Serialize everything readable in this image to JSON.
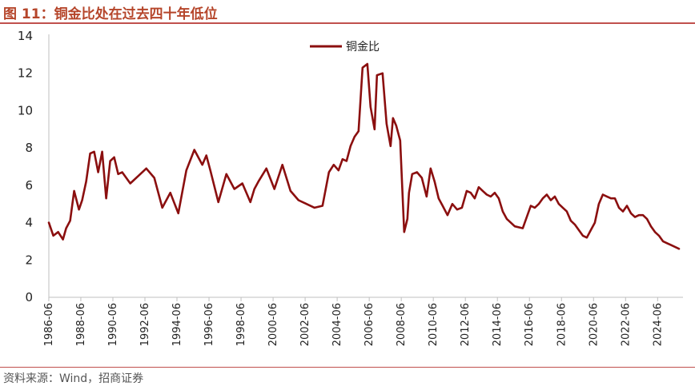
{
  "figure": {
    "title": "图 11：铜金比处在过去四十年低位",
    "source": "资料来源：Wind，招商证券"
  },
  "colors": {
    "series": "#8b0f0f",
    "accent": "#c0504d",
    "axis": "#bfbfbf"
  },
  "chart_data": {
    "type": "line",
    "title": "",
    "xlabel": "",
    "ylabel": "",
    "ylim": [
      0,
      14
    ],
    "yticks": [
      0,
      2,
      4,
      6,
      8,
      10,
      12,
      14
    ],
    "xlim": [
      1986.42,
      2026.0
    ],
    "xticks": [
      "1986-06",
      "1988-06",
      "1990-06",
      "1992-06",
      "1994-06",
      "1996-06",
      "1998-06",
      "2000-06",
      "2002-06",
      "2004-06",
      "2006-06",
      "2008-06",
      "2010-06",
      "2012-06",
      "2014-06",
      "2016-06",
      "2018-06",
      "2020-06",
      "2022-06",
      "2024-06"
    ],
    "legend": "top-center",
    "grid": false,
    "series": [
      {
        "name": "铜金比",
        "x": [
          1986.42,
          1986.7,
          1987.0,
          1987.3,
          1987.5,
          1987.75,
          1988.0,
          1988.3,
          1988.5,
          1988.75,
          1989.0,
          1989.25,
          1989.5,
          1989.75,
          1990.0,
          1990.25,
          1990.5,
          1990.75,
          1991.0,
          1991.5,
          1992.0,
          1992.5,
          1993.0,
          1993.5,
          1994.0,
          1994.5,
          1995.0,
          1995.5,
          1996.0,
          1996.25,
          1996.5,
          1997.0,
          1997.5,
          1998.0,
          1998.5,
          1999.0,
          1999.25,
          1999.5,
          2000.0,
          2000.5,
          2001.0,
          2001.5,
          2002.0,
          2002.5,
          2003.0,
          2003.5,
          2003.9,
          2004.2,
          2004.5,
          2004.75,
          2005.0,
          2005.25,
          2005.5,
          2005.75,
          2006.0,
          2006.3,
          2006.5,
          2006.75,
          2006.9,
          2007.25,
          2007.5,
          2007.75,
          2007.9,
          2008.1,
          2008.35,
          2008.6,
          2008.8,
          2008.9,
          2009.1,
          2009.4,
          2009.7,
          2010.0,
          2010.25,
          2010.5,
          2010.75,
          2011.0,
          2011.3,
          2011.6,
          2011.9,
          2012.2,
          2012.5,
          2012.75,
          2013.0,
          2013.25,
          2013.5,
          2013.75,
          2014.0,
          2014.25,
          2014.5,
          2014.75,
          2015.0,
          2015.5,
          2016.0,
          2016.5,
          2016.75,
          2017.0,
          2017.25,
          2017.5,
          2017.75,
          2018.0,
          2018.25,
          2018.5,
          2018.75,
          2019.0,
          2019.25,
          2019.5,
          2019.75,
          2020.0,
          2020.25,
          2020.5,
          2020.75,
          2021.0,
          2021.25,
          2021.5,
          2021.75,
          2022.0,
          2022.25,
          2022.5,
          2022.75,
          2023.0,
          2023.25,
          2023.5,
          2023.75,
          2024.0,
          2024.25,
          2024.5,
          2024.75,
          2025.0,
          2025.25,
          2025.5,
          2025.75
        ],
        "values": [
          4.0,
          3.3,
          3.5,
          3.1,
          3.7,
          4.1,
          5.7,
          4.7,
          5.2,
          6.2,
          7.7,
          7.8,
          6.7,
          7.8,
          5.3,
          7.3,
          7.5,
          6.6,
          6.7,
          6.1,
          6.5,
          6.9,
          6.4,
          4.8,
          5.6,
          4.5,
          6.8,
          7.9,
          7.1,
          7.6,
          6.8,
          5.1,
          6.6,
          5.8,
          6.1,
          5.1,
          5.8,
          6.2,
          6.9,
          5.8,
          7.1,
          5.7,
          5.2,
          5.0,
          4.8,
          4.9,
          6.7,
          7.1,
          6.8,
          7.4,
          7.3,
          8.1,
          8.6,
          8.9,
          12.3,
          12.5,
          10.2,
          9.0,
          11.9,
          12.0,
          9.3,
          8.1,
          9.6,
          9.2,
          8.4,
          3.5,
          4.2,
          5.6,
          6.6,
          6.7,
          6.4,
          5.4,
          6.9,
          6.2,
          5.3,
          4.9,
          4.4,
          5.0,
          4.7,
          4.8,
          5.7,
          5.6,
          5.3,
          5.9,
          5.7,
          5.5,
          5.4,
          5.6,
          5.3,
          4.6,
          4.2,
          3.8,
          3.7,
          4.9,
          4.8,
          5.0,
          5.3,
          5.5,
          5.2,
          5.4,
          5.0,
          4.8,
          4.6,
          4.1,
          3.9,
          3.6,
          3.3,
          3.2,
          3.6,
          4.0,
          5.0,
          5.5,
          5.4,
          5.3,
          5.3,
          4.8,
          4.6,
          4.9,
          4.5,
          4.3,
          4.4,
          4.4,
          4.2,
          3.8,
          3.5,
          3.3,
          3.0,
          2.9,
          2.8,
          2.7,
          2.6
        ]
      }
    ]
  }
}
